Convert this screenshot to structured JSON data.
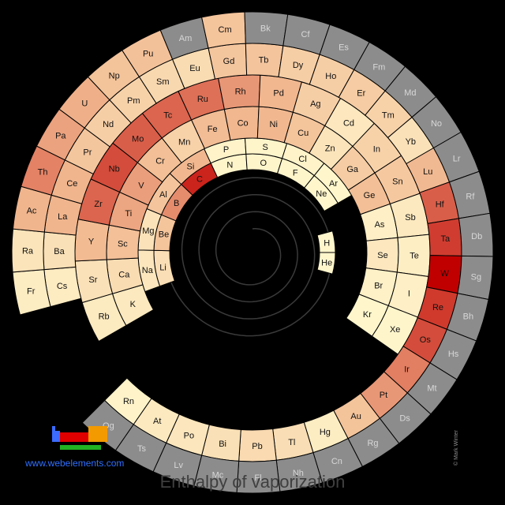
{
  "chart_data": {
    "type": "heatmap",
    "title": "Enthalpy of vaporization",
    "color_scale": {
      "no_data": "#8c8c8c",
      "low": "#fff6cc",
      "mid": "#f0b48c",
      "high": "#c00000"
    },
    "elements": [
      {
        "symbol": "H",
        "level": 0.0
      },
      {
        "symbol": "He",
        "level": 0.0
      },
      {
        "symbol": "Li",
        "level": 0.18
      },
      {
        "symbol": "Be",
        "level": 0.38
      },
      {
        "symbol": "B",
        "level": 0.61
      },
      {
        "symbol": "C",
        "level": 0.9
      },
      {
        "symbol": "N",
        "level": 0.01
      },
      {
        "symbol": "O",
        "level": 0.01
      },
      {
        "symbol": "F",
        "level": 0.01
      },
      {
        "symbol": "Ne",
        "level": 0.0
      },
      {
        "symbol": "Na",
        "level": 0.12
      },
      {
        "symbol": "Mg",
        "level": 0.15
      },
      {
        "symbol": "Al",
        "level": 0.37
      },
      {
        "symbol": "Si",
        "level": 0.47
      },
      {
        "symbol": "P",
        "level": 0.02
      },
      {
        "symbol": "S",
        "level": 0.01
      },
      {
        "symbol": "Cl",
        "level": 0.02
      },
      {
        "symbol": "Ar",
        "level": 0.0
      },
      {
        "symbol": "K",
        "level": 0.1
      },
      {
        "symbol": "Ca",
        "level": 0.2
      },
      {
        "symbol": "Sc",
        "level": 0.41
      },
      {
        "symbol": "Ti",
        "level": 0.54
      },
      {
        "symbol": "V",
        "level": 0.56
      },
      {
        "symbol": "Cr",
        "level": 0.42
      },
      {
        "symbol": "Mn",
        "level": 0.28
      },
      {
        "symbol": "Fe",
        "level": 0.44
      },
      {
        "symbol": "Co",
        "level": 0.48
      },
      {
        "symbol": "Ni",
        "level": 0.47
      },
      {
        "symbol": "Cu",
        "level": 0.38
      },
      {
        "symbol": "Zn",
        "level": 0.14
      },
      {
        "symbol": "Ga",
        "level": 0.32
      },
      {
        "symbol": "Ge",
        "level": 0.42
      },
      {
        "symbol": "As",
        "level": 0.05
      },
      {
        "symbol": "Se",
        "level": 0.11
      },
      {
        "symbol": "Br",
        "level": 0.04
      },
      {
        "symbol": "Kr",
        "level": 0.0
      },
      {
        "symbol": "Rb",
        "level": 0.09
      },
      {
        "symbol": "Sr",
        "level": 0.16
      },
      {
        "symbol": "Y",
        "level": 0.45
      },
      {
        "symbol": "Zr",
        "level": 0.72
      },
      {
        "symbol": "Nb",
        "level": 0.79
      },
      {
        "symbol": "Mo",
        "level": 0.74
      },
      {
        "symbol": "Tc",
        "level": 0.72
      },
      {
        "symbol": "Ru",
        "level": 0.69
      },
      {
        "symbol": "Rh",
        "level": 0.58
      },
      {
        "symbol": "Pd",
        "level": 0.48
      },
      {
        "symbol": "Ag",
        "level": 0.3
      },
      {
        "symbol": "Cd",
        "level": 0.11
      },
      {
        "symbol": "In",
        "level": 0.27
      },
      {
        "symbol": "Sn",
        "level": 0.35
      },
      {
        "symbol": "Sb",
        "level": 0.1
      },
      {
        "symbol": "Te",
        "level": 0.06
      },
      {
        "symbol": "I",
        "level": 0.05
      },
      {
        "symbol": "Xe",
        "level": 0.01
      },
      {
        "symbol": "Cs",
        "level": 0.08
      },
      {
        "symbol": "Ba",
        "level": 0.17
      },
      {
        "symbol": "La",
        "level": 0.49
      },
      {
        "symbol": "Ce",
        "level": 0.49
      },
      {
        "symbol": "Pr",
        "level": 0.36
      },
      {
        "symbol": "Nd",
        "level": 0.3
      },
      {
        "symbol": "Pm",
        "level": 0.27
      },
      {
        "symbol": "Sm",
        "level": 0.23
      },
      {
        "symbol": "Eu",
        "level": 0.2
      },
      {
        "symbol": "Gd",
        "level": 0.36
      },
      {
        "symbol": "Tb",
        "level": 0.37
      },
      {
        "symbol": "Dy",
        "level": 0.3
      },
      {
        "symbol": "Ho",
        "level": 0.3
      },
      {
        "symbol": "Er",
        "level": 0.32
      },
      {
        "symbol": "Tm",
        "level": 0.27
      },
      {
        "symbol": "Yb",
        "level": 0.16
      },
      {
        "symbol": "Lu",
        "level": 0.46
      },
      {
        "symbol": "Hf",
        "level": 0.74
      },
      {
        "symbol": "Ta",
        "level": 0.83
      },
      {
        "symbol": "W",
        "level": 1.0
      },
      {
        "symbol": "Re",
        "level": 0.84
      },
      {
        "symbol": "Os",
        "level": 0.79
      },
      {
        "symbol": "Ir",
        "level": 0.65
      },
      {
        "symbol": "Pt",
        "level": 0.58
      },
      {
        "symbol": "Au",
        "level": 0.39
      },
      {
        "symbol": "Hg",
        "level": 0.07
      },
      {
        "symbol": "Tl",
        "level": 0.19
      },
      {
        "symbol": "Pb",
        "level": 0.21
      },
      {
        "symbol": "Bi",
        "level": 0.17
      },
      {
        "symbol": "Po",
        "level": 0.12
      },
      {
        "symbol": "At",
        "level": 0.1
      },
      {
        "symbol": "Rn",
        "level": 0.02
      },
      {
        "symbol": "Fr",
        "level": 0.07
      },
      {
        "symbol": "Ra",
        "level": 0.14
      },
      {
        "symbol": "Ac",
        "level": 0.49
      },
      {
        "symbol": "Th",
        "level": 0.64
      },
      {
        "symbol": "Pa",
        "level": 0.55
      },
      {
        "symbol": "U",
        "level": 0.51
      },
      {
        "symbol": "Np",
        "level": 0.39
      },
      {
        "symbol": "Pu",
        "level": 0.4
      },
      {
        "symbol": "Am",
        "level": null
      },
      {
        "symbol": "Cm",
        "level": 0.38
      },
      {
        "symbol": "Bk",
        "level": null
      },
      {
        "symbol": "Cf",
        "level": null
      },
      {
        "symbol": "Es",
        "level": null
      },
      {
        "symbol": "Fm",
        "level": null
      },
      {
        "symbol": "Md",
        "level": null
      },
      {
        "symbol": "No",
        "level": null
      },
      {
        "symbol": "Lr",
        "level": null
      },
      {
        "symbol": "Rf",
        "level": null
      },
      {
        "symbol": "Db",
        "level": null
      },
      {
        "symbol": "Sg",
        "level": null
      },
      {
        "symbol": "Bh",
        "level": null
      },
      {
        "symbol": "Hs",
        "level": null
      },
      {
        "symbol": "Mt",
        "level": null
      },
      {
        "symbol": "Ds",
        "level": null
      },
      {
        "symbol": "Rg",
        "level": null
      },
      {
        "symbol": "Cn",
        "level": null
      },
      {
        "symbol": "Nh",
        "level": null
      },
      {
        "symbol": "Fl",
        "level": null
      },
      {
        "symbol": "Mc",
        "level": null
      },
      {
        "symbol": "Lv",
        "level": null
      },
      {
        "symbol": "Ts",
        "level": null
      },
      {
        "symbol": "Og",
        "level": null
      }
    ]
  },
  "footer": {
    "site": "www.webelements.com",
    "credit": "© Mark Winter",
    "title": "Enthalpy of vaporization"
  }
}
